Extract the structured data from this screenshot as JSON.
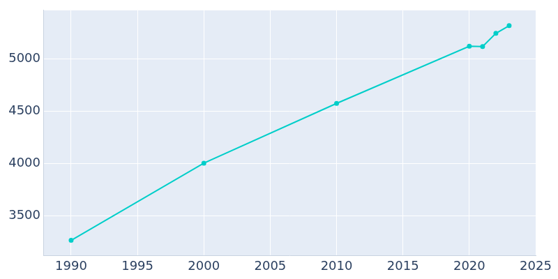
{
  "chart_data": {
    "type": "line",
    "x": [
      1990,
      2000,
      2010,
      2020,
      2021,
      2022,
      2023
    ],
    "values": [
      3268,
      4005,
      4576,
      5122,
      5119,
      5245,
      5318
    ],
    "color": "#00cec9",
    "marker": "circle",
    "xlim": [
      1987.9,
      2025
    ],
    "xticks": [
      1990,
      1995,
      2000,
      2005,
      2010,
      2015,
      2020,
      2025
    ],
    "ylim": [
      3125,
      5465
    ],
    "yticks": [
      3500,
      4000,
      4500,
      5000
    ],
    "grid": true
  }
}
